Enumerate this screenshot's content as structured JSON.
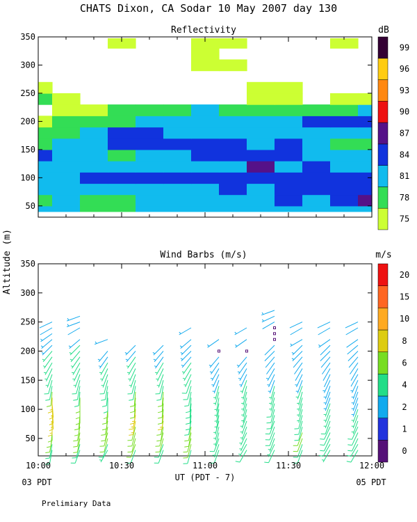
{
  "figure": {
    "title": "CHATS Dixon, CA  Sodar  10 May 2007  day 130",
    "ylabel": "Altitude (m)",
    "xlabel": "UT  (PDT - 7)",
    "left_time_label": "03 PDT",
    "right_time_label": "05 PDT",
    "footer": "Prelimiary Data"
  },
  "chart_data": [
    {
      "type": "heatmap",
      "title": "Reflectivity",
      "colorbar_unit": "dB",
      "x_ticks": [
        "10:00",
        "10:30",
        "11:00",
        "11:30",
        "12:00"
      ],
      "y_ticks": [
        50,
        100,
        150,
        200,
        250,
        300,
        350
      ],
      "ylim": [
        30,
        350
      ],
      "xlim": [
        "10:00",
        "12:00"
      ],
      "levels": [
        75,
        78,
        81,
        84,
        87,
        90,
        93,
        96,
        99
      ],
      "level_colors": [
        "#ccff33",
        "#33dd55",
        "#11bbee",
        "#1133dd",
        "#551188",
        "#ee1111",
        "#ff8811",
        "#ffcc11",
        "#330033"
      ],
      "times": [
        "10:00",
        "10:10",
        "10:20",
        "10:30",
        "10:40",
        "10:50",
        "11:00",
        "11:10",
        "11:20",
        "11:30",
        "11:40",
        "11:50",
        "12:00"
      ],
      "heights": [
        40,
        60,
        80,
        100,
        120,
        140,
        160,
        180,
        200,
        220,
        240,
        260,
        280,
        300,
        320,
        340,
        355
      ],
      "values": [
        [
          81,
          81,
          79,
          80,
          81,
          81,
          81,
          81,
          81,
          81,
          81,
          81,
          81
        ],
        [
          80,
          81,
          78,
          80,
          81,
          81,
          81,
          83,
          83,
          84,
          82,
          86,
          87
        ],
        [
          81,
          81,
          81,
          81,
          81,
          81,
          83,
          85,
          82,
          84,
          85,
          85,
          86
        ],
        [
          83,
          81,
          85,
          86,
          85,
          84,
          84,
          85,
          84,
          84,
          84,
          84,
          84
        ],
        [
          83,
          82,
          82,
          81,
          81,
          82,
          83,
          82,
          87,
          82,
          84,
          83,
          83
        ],
        [
          85,
          81,
          81,
          80,
          82,
          82,
          85,
          85,
          86,
          86,
          83,
          82,
          82
        ],
        [
          79,
          81,
          81,
          85,
          84,
          85,
          85,
          84,
          83,
          84,
          82,
          78,
          78
        ],
        [
          78,
          79,
          82,
          85,
          84,
          83,
          82,
          83,
          82,
          82,
          83,
          82,
          83
        ],
        [
          76,
          78,
          79,
          80,
          82,
          81,
          82,
          82,
          82,
          82,
          85,
          85,
          85
        ],
        [
          null,
          76,
          77,
          78,
          78,
          80,
          81,
          80,
          80,
          79,
          79,
          80,
          81
        ],
        [
          80,
          76,
          null,
          null,
          null,
          null,
          null,
          null,
          77,
          77,
          null,
          77,
          76
        ],
        [
          76,
          null,
          null,
          null,
          null,
          null,
          null,
          null,
          76,
          76,
          null,
          null,
          null
        ],
        [
          null,
          null,
          null,
          null,
          null,
          null,
          null,
          null,
          null,
          null,
          null,
          null,
          null
        ],
        [
          null,
          null,
          null,
          null,
          null,
          null,
          76,
          76,
          null,
          null,
          null,
          null,
          null
        ],
        [
          null,
          null,
          null,
          null,
          null,
          null,
          76,
          null,
          null,
          null,
          null,
          null,
          null
        ],
        [
          null,
          null,
          null,
          75,
          null,
          null,
          76,
          76,
          null,
          null,
          null,
          76,
          null
        ],
        [
          null,
          null,
          null,
          null,
          null,
          null,
          null,
          null,
          null,
          null,
          null,
          null,
          null
        ]
      ]
    },
    {
      "type": "scatter",
      "title": "Wind Barbs (m/s)",
      "colorbar_unit": "m/s",
      "x_ticks": [
        "10:00",
        "10:30",
        "11:00",
        "11:30",
        "12:00"
      ],
      "y_ticks": [
        50,
        100,
        150,
        200,
        250,
        300,
        350
      ],
      "ylim": [
        20,
        350
      ],
      "xlim": [
        "10:00",
        "12:00"
      ],
      "speed_levels": [
        0,
        1,
        2,
        4,
        6,
        8,
        10,
        15,
        20
      ],
      "speed_colors": [
        "#551177",
        "#2233dd",
        "#11aaee",
        "#22dd88",
        "#77dd22",
        "#ddcc11",
        "#ffaa22",
        "#ff6622",
        "#ee1111"
      ],
      "times": [
        "10:05",
        "10:15",
        "10:25",
        "10:35",
        "10:45",
        "10:55",
        "11:05",
        "11:15",
        "11:25",
        "11:35",
        "11:45",
        "11:55"
      ],
      "heights": [
        30,
        40,
        50,
        60,
        70,
        80,
        90,
        100,
        110,
        120,
        130,
        140,
        150,
        160,
        170,
        180,
        190,
        200,
        210,
        220,
        230,
        240,
        250,
        260,
        270
      ],
      "speeds": [
        [
          5,
          5,
          4,
          5,
          5,
          5,
          5,
          5,
          5,
          5,
          4,
          5
        ],
        [
          5,
          5,
          5,
          6,
          5,
          6,
          4,
          4,
          4,
          5,
          5,
          5
        ],
        [
          6,
          6,
          6,
          6,
          6,
          6,
          5,
          4,
          4,
          6,
          5,
          5
        ],
        [
          7,
          6,
          6,
          7,
          7,
          6,
          4,
          4,
          5,
          6,
          5,
          5
        ],
        [
          7,
          6,
          6,
          7,
          7,
          6,
          4,
          4,
          5,
          5,
          5,
          5
        ],
        [
          8,
          6,
          6,
          8,
          7,
          5,
          4,
          4,
          5,
          5,
          5,
          4
        ],
        [
          9,
          7,
          6,
          8,
          8,
          5,
          4,
          4,
          5,
          5,
          4,
          4
        ],
        [
          9,
          7,
          6,
          8,
          7,
          5,
          4,
          4,
          5,
          4,
          4,
          4
        ],
        [
          9,
          6,
          6,
          7,
          6,
          5,
          4,
          4,
          5,
          4,
          4,
          3
        ],
        [
          8,
          6,
          5,
          6,
          6,
          5,
          4,
          4,
          4,
          4,
          3,
          3
        ],
        [
          6,
          5,
          5,
          6,
          6,
          5,
          4,
          4,
          4,
          4,
          3,
          3
        ],
        [
          5,
          5,
          5,
          5,
          5,
          5,
          4,
          4,
          4,
          4,
          3,
          3
        ],
        [
          5,
          5,
          5,
          5,
          5,
          5,
          3,
          4,
          3,
          3,
          3,
          3
        ],
        [
          4,
          4,
          4,
          4,
          4,
          4,
          3,
          3,
          3,
          3,
          2,
          2
        ],
        [
          4,
          4,
          4,
          4,
          4,
          4,
          3,
          3,
          3,
          2,
          2,
          2
        ],
        [
          4,
          4,
          4,
          4,
          4,
          4,
          3,
          3,
          2,
          2,
          2,
          2
        ],
        [
          4,
          4,
          3,
          4,
          3,
          3,
          3,
          3,
          2,
          2,
          2,
          2
        ],
        [
          4,
          4,
          3,
          3,
          3,
          3,
          0,
          0,
          2,
          3,
          2,
          2
        ],
        [
          3,
          4,
          null,
          3,
          3,
          3,
          null,
          null,
          2,
          3,
          2,
          2
        ],
        [
          3,
          3,
          3,
          null,
          null,
          3,
          3,
          3,
          0,
          3,
          3,
          2
        ],
        [
          3,
          null,
          null,
          null,
          null,
          null,
          null,
          null,
          0,
          null,
          null,
          null
        ],
        [
          2,
          2,
          null,
          null,
          null,
          3,
          null,
          3,
          0,
          2,
          2,
          2
        ],
        [
          2,
          3,
          null,
          null,
          null,
          null,
          null,
          null,
          2,
          2,
          2,
          2
        ],
        [
          null,
          3,
          null,
          null,
          null,
          null,
          null,
          null,
          3,
          null,
          null,
          null
        ],
        [
          null,
          null,
          null,
          null,
          null,
          null,
          null,
          null,
          3,
          null,
          null,
          null
        ]
      ],
      "directions": [
        [
          190,
          200,
          210,
          200,
          200,
          195,
          200,
          210,
          205,
          200,
          210,
          210
        ],
        [
          190,
          195,
          200,
          200,
          200,
          195,
          200,
          210,
          205,
          200,
          210,
          210
        ],
        [
          190,
          190,
          195,
          195,
          195,
          195,
          200,
          205,
          200,
          200,
          205,
          205
        ],
        [
          185,
          190,
          195,
          195,
          195,
          190,
          195,
          205,
          200,
          200,
          205,
          205
        ],
        [
          180,
          190,
          190,
          195,
          190,
          190,
          195,
          200,
          200,
          195,
          205,
          205
        ],
        [
          180,
          185,
          190,
          190,
          190,
          190,
          195,
          200,
          200,
          195,
          200,
          200
        ],
        [
          175,
          185,
          185,
          190,
          185,
          185,
          190,
          200,
          195,
          195,
          200,
          200
        ],
        [
          175,
          180,
          185,
          185,
          185,
          185,
          190,
          195,
          195,
          195,
          200,
          200
        ],
        [
          175,
          180,
          180,
          185,
          185,
          185,
          190,
          195,
          195,
          195,
          200,
          200
        ],
        [
          180,
          180,
          180,
          185,
          185,
          185,
          190,
          195,
          195,
          195,
          200,
          200
        ],
        [
          185,
          185,
          185,
          185,
          185,
          190,
          195,
          195,
          195,
          195,
          200,
          200
        ],
        [
          190,
          190,
          190,
          190,
          190,
          195,
          195,
          195,
          195,
          200,
          200,
          200
        ],
        [
          195,
          195,
          195,
          195,
          195,
          200,
          200,
          200,
          200,
          200,
          205,
          205
        ],
        [
          200,
          200,
          200,
          200,
          200,
          205,
          205,
          205,
          205,
          205,
          205,
          210
        ],
        [
          205,
          205,
          205,
          205,
          205,
          210,
          210,
          210,
          210,
          210,
          210,
          210
        ],
        [
          210,
          210,
          210,
          210,
          210,
          215,
          215,
          215,
          215,
          215,
          215,
          215
        ],
        [
          215,
          215,
          215,
          215,
          215,
          220,
          220,
          220,
          220,
          220,
          220,
          220
        ],
        [
          220,
          220,
          220,
          220,
          220,
          225,
          0,
          0,
          225,
          225,
          225,
          225
        ],
        [
          225,
          225,
          null,
          225,
          225,
          225,
          null,
          null,
          225,
          225,
          225,
          230
        ],
        [
          230,
          230,
          250,
          null,
          null,
          230,
          235,
          235,
          0,
          240,
          235,
          235
        ],
        [
          235,
          null,
          null,
          null,
          null,
          null,
          null,
          null,
          0,
          null,
          null,
          null
        ],
        [
          240,
          240,
          null,
          null,
          null,
          240,
          null,
          240,
          0,
          240,
          240,
          240
        ],
        [
          245,
          250,
          null,
          null,
          null,
          null,
          null,
          null,
          240,
          245,
          245,
          245
        ],
        [
          null,
          250,
          null,
          null,
          null,
          null,
          null,
          null,
          245,
          null,
          null,
          null
        ],
        [
          null,
          null,
          null,
          null,
          null,
          null,
          null,
          null,
          250,
          null,
          null,
          null
        ]
      ]
    }
  ]
}
